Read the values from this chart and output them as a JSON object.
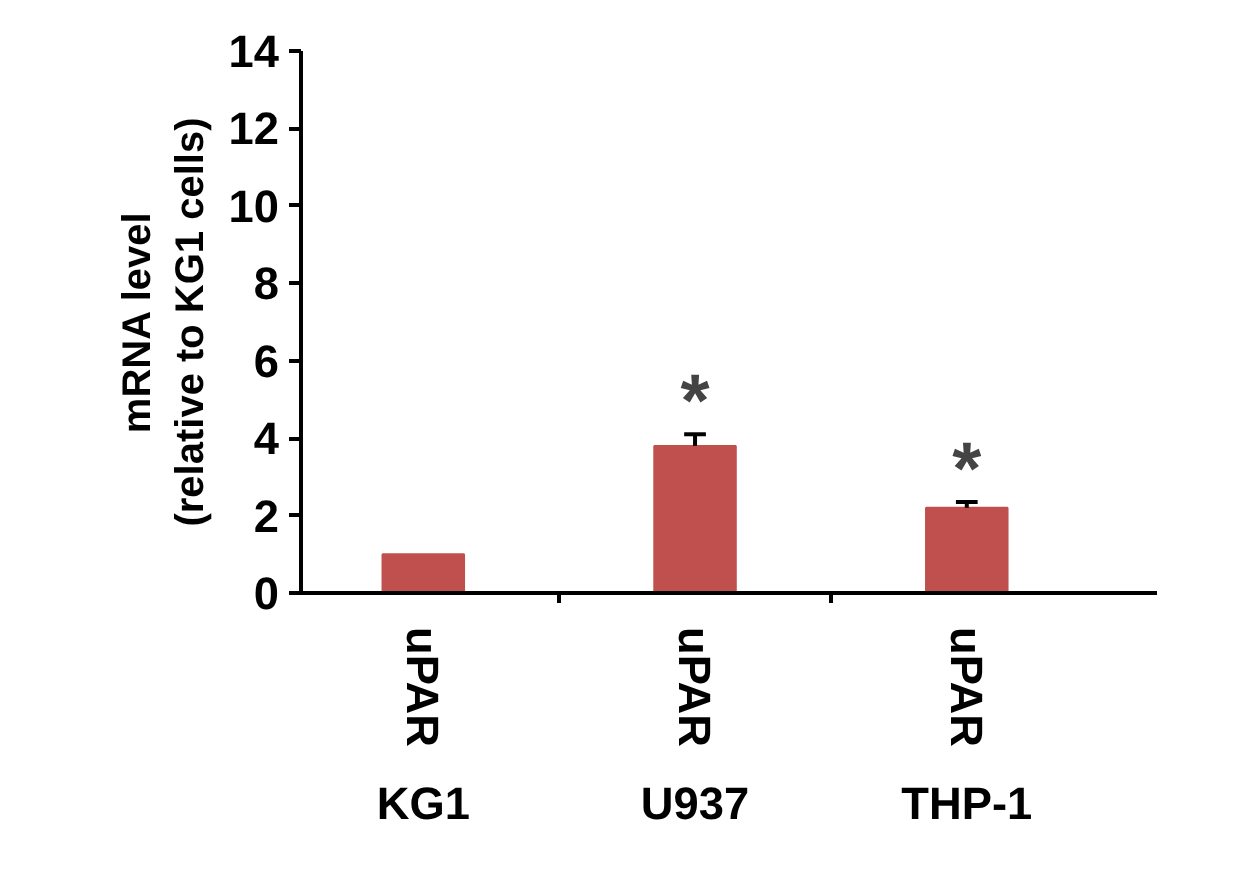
{
  "chart_data": {
    "type": "bar",
    "ylabel": "mRNA level\n(relative to KG1 cells)",
    "categories": [
      "uPAR",
      "uPAR",
      "uPAR"
    ],
    "values": [
      1.0,
      3.8,
      2.2
    ],
    "errors": [
      null,
      0.3,
      0.15
    ],
    "value_labels": [
      null,
      "*",
      "*"
    ],
    "color": "#c0504d",
    "ylim": [
      0,
      14
    ],
    "yticks": [
      0,
      2,
      4,
      6,
      8,
      10,
      12,
      14
    ],
    "grid": false,
    "annotations": [
      "KG1",
      "U937",
      "THP-1"
    ]
  }
}
